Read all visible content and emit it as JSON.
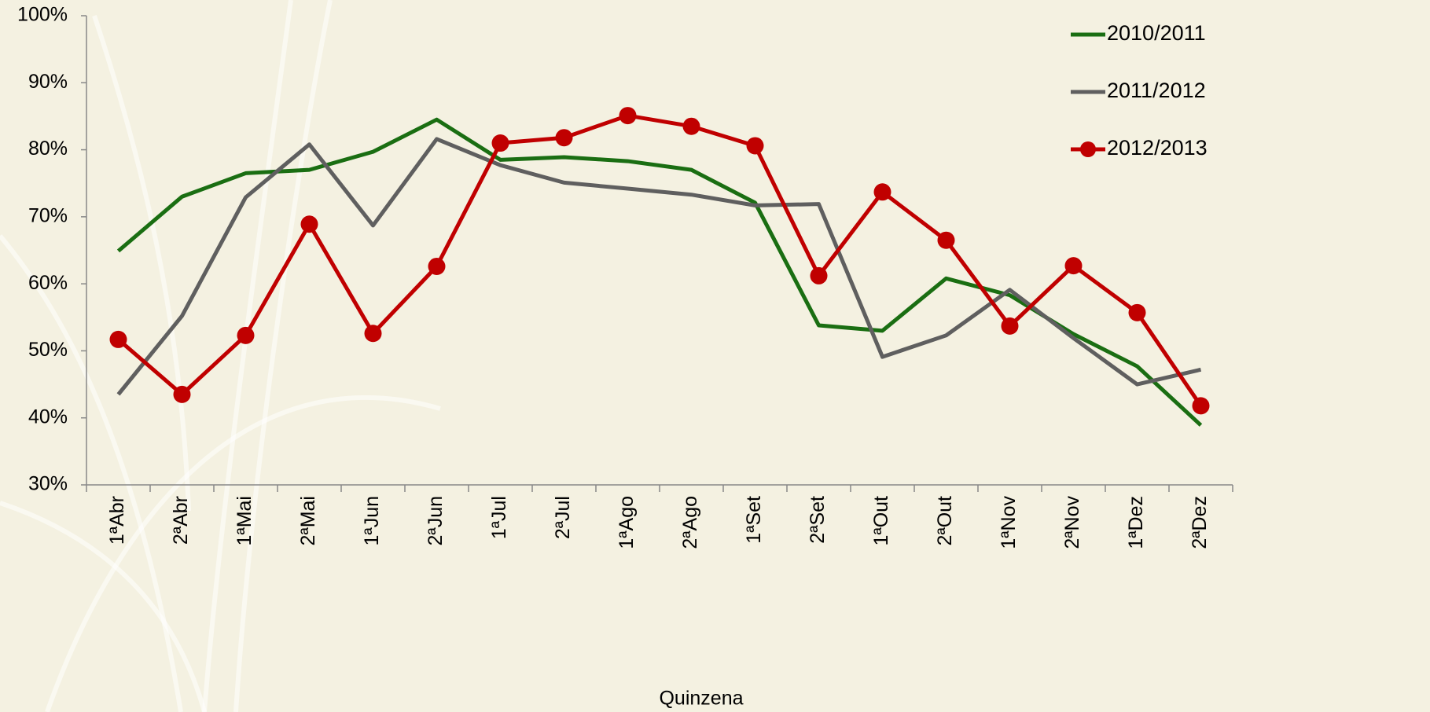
{
  "chart_data": {
    "type": "line",
    "categories": [
      "1ªAbr",
      "2ªAbr",
      "1ªMai",
      "2ªMai",
      "1ªJun",
      "2ªJun",
      "1ªJul",
      "2ªJul",
      "1ªAgo",
      "2ªAgo",
      "1ªSet",
      "2ªSet",
      "1ªOut",
      "2ªOut",
      "1ªNov",
      "2ªNov",
      "1ªDez",
      "2ªDez"
    ],
    "x_label": "Quinzena",
    "series": [
      {
        "name": "2010/2011",
        "color": "#1a6e12",
        "marker": false,
        "values": [
          64.9,
          73.0,
          76.5,
          77.0,
          79.7,
          84.5,
          78.5,
          78.9,
          78.3,
          77.0,
          72.1,
          53.8,
          53.0,
          60.8,
          58.3,
          52.5,
          47.7,
          38.9
        ]
      },
      {
        "name": "2011/2012",
        "color": "#5f5f5f",
        "marker": false,
        "values": [
          43.5,
          55.2,
          72.9,
          80.8,
          68.7,
          81.6,
          77.7,
          75.1,
          74.2,
          73.3,
          71.7,
          71.9,
          49.1,
          52.3,
          59.1,
          51.9,
          45.0,
          47.2
        ]
      },
      {
        "name": "2012/2013",
        "color": "#c00000",
        "marker": true,
        "values": [
          51.7,
          43.5,
          52.3,
          68.9,
          52.6,
          62.6,
          81.0,
          81.8,
          85.1,
          83.5,
          80.6,
          61.2,
          73.7,
          66.5,
          53.7,
          62.7,
          55.7,
          41.8
        ]
      }
    ],
    "ylim": [
      30,
      100
    ],
    "yticks": [
      {
        "value": 30,
        "label": "30%"
      },
      {
        "value": 40,
        "label": "40%"
      },
      {
        "value": 50,
        "label": "50%"
      },
      {
        "value": 60,
        "label": "60%"
      },
      {
        "value": 70,
        "label": "70%"
      },
      {
        "value": 80,
        "label": "80%"
      },
      {
        "value": 90,
        "label": "90%"
      },
      {
        "value": 100,
        "label": "100%"
      }
    ],
    "legend": "top-right"
  }
}
